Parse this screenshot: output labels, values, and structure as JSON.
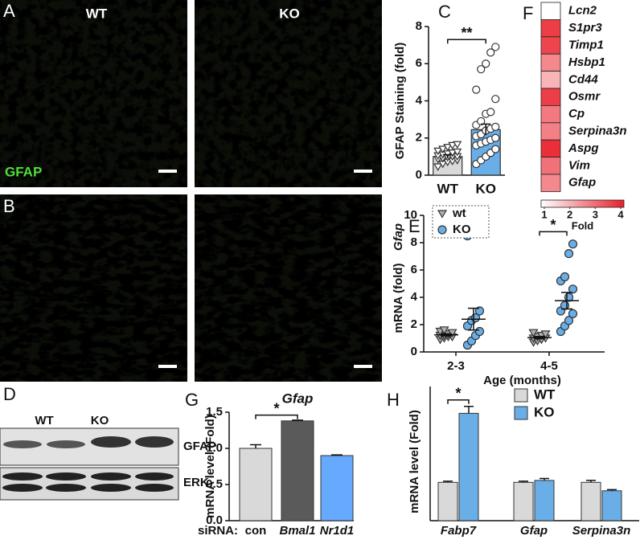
{
  "panels": {
    "A": {
      "letter": "A",
      "wt": "WT",
      "ko": "KO",
      "stain": "GFAP"
    },
    "B": {
      "letter": "B"
    },
    "D": {
      "letter": "D",
      "wt": "WT",
      "ko": "KO",
      "bands": [
        "GFAP",
        "ERK"
      ]
    }
  },
  "chart_data": [
    {
      "type": "bar-scatter",
      "letter": "C",
      "ylabel": "GFAP Staining (fold)",
      "categories": [
        "WT",
        "KO"
      ],
      "values": [
        1.0,
        2.45
      ],
      "errors": [
        0.1,
        0.3
      ],
      "colors": [
        "#d9d9d9",
        "#6aaee8"
      ],
      "markers": [
        "triangle",
        "circle"
      ],
      "points": [
        [
          0.45,
          0.6,
          0.7,
          0.75,
          0.8,
          0.85,
          0.9,
          0.95,
          1.0,
          1.0,
          1.05,
          1.1,
          1.15,
          1.2,
          1.25,
          1.3,
          1.4,
          1.5,
          1.6,
          1.65
        ],
        [
          0.6,
          0.8,
          1.0,
          1.2,
          1.4,
          1.6,
          1.7,
          1.8,
          1.9,
          2.0,
          2.1,
          2.2,
          2.4,
          2.5,
          2.6,
          2.7,
          2.9,
          3.3,
          3.4,
          4.1,
          4.6,
          5.7,
          6.0,
          6.6,
          6.9
        ]
      ],
      "ylim": [
        0,
        8
      ],
      "yticks": [
        0,
        2,
        4,
        6,
        8
      ],
      "significance": "**"
    },
    {
      "type": "heatmap",
      "letter": "F",
      "categories": [
        "Lcn2",
        "S1pr3",
        "Timp1",
        "Hsbp1",
        "Cd44",
        "Osmr",
        "Cp",
        "Serpina3n",
        "Aspg",
        "Vim",
        "Gfap"
      ],
      "values": [
        1.0,
        3.6,
        3.5,
        2.6,
        2.0,
        3.6,
        2.8,
        2.7,
        3.8,
        2.9,
        2.6
      ],
      "clim": [
        1,
        4
      ],
      "cticks": [
        1,
        2,
        3,
        4
      ],
      "colorbar_label": "Fold",
      "colors": [
        "#ffffff",
        "#e8202a"
      ]
    },
    {
      "type": "dot",
      "letter": "E",
      "ylabel_gene": "Gfap",
      "ylabel": "mRNA (fold)",
      "xlabel": "Age (months)",
      "categories": [
        "2-3",
        "4-5"
      ],
      "series": [
        {
          "name": "wt",
          "color": "#b0b0b0",
          "marker": "triangle",
          "points": [
            [
              0.9,
              1.0,
              1.1,
              1.1,
              1.2,
              1.2,
              1.3,
              1.4,
              1.5,
              1.6
            ],
            [
              0.7,
              0.8,
              0.9,
              1.0,
              1.0,
              1.1,
              1.2,
              1.3,
              1.4
            ]
          ],
          "means": [
            1.25,
            1.05
          ],
          "errors": [
            0.08,
            0.08
          ]
        },
        {
          "name": "KO",
          "color": "#6aaee8",
          "marker": "circle",
          "points": [
            [
              0.5,
              0.8,
              1.2,
              1.5,
              1.9,
              2.3,
              2.5,
              3.0,
              8.5
            ],
            [
              1.5,
              1.9,
              2.3,
              2.8,
              3.0,
              3.4,
              4.0,
              4.6,
              5.2,
              5.5,
              7.2,
              7.9
            ]
          ],
          "means": [
            2.4,
            3.75
          ],
          "errors": [
            0.8,
            0.6
          ]
        }
      ],
      "ylim": [
        0,
        10
      ],
      "yticks": [
        0,
        2,
        4,
        6,
        8,
        10
      ],
      "significance": "*"
    },
    {
      "type": "bar",
      "letter": "G",
      "title": "Gfap",
      "ylabel": "mRNA level (Fold)",
      "xlabel": "siRNA:",
      "categories": [
        "con",
        "Bmal1",
        "Nr1d1"
      ],
      "values": [
        1.0,
        1.38,
        0.9
      ],
      "errors": [
        0.05,
        0.01,
        0.01
      ],
      "colors": [
        "#d9d9d9",
        "#5a5a5a",
        "#66aaff"
      ],
      "ylim": [
        0,
        1.5
      ],
      "yticks": [
        {
          "value": 0,
          "label": "0.0"
        },
        0.5,
        {
          "value": 1,
          "label": "1.0"
        },
        1.5
      ],
      "significance": "*"
    },
    {
      "type": "grouped-bar",
      "letter": "H",
      "ylabel": "mRNA level (Fold)",
      "categories": [
        "Fabp7",
        "Gfap",
        "Serpina3n"
      ],
      "series": [
        {
          "name": "WT",
          "color": "#d9d9d9",
          "values": [
            1.0,
            1.0,
            1.0
          ],
          "errors": [
            0.03,
            0.03,
            0.05
          ]
        },
        {
          "name": "KO",
          "color": "#6aaee8",
          "values": [
            2.8,
            1.05,
            0.78
          ],
          "errors": [
            0.18,
            0.05,
            0.03
          ]
        }
      ],
      "ylim": [
        0,
        3.5
      ],
      "significance": "*"
    }
  ]
}
